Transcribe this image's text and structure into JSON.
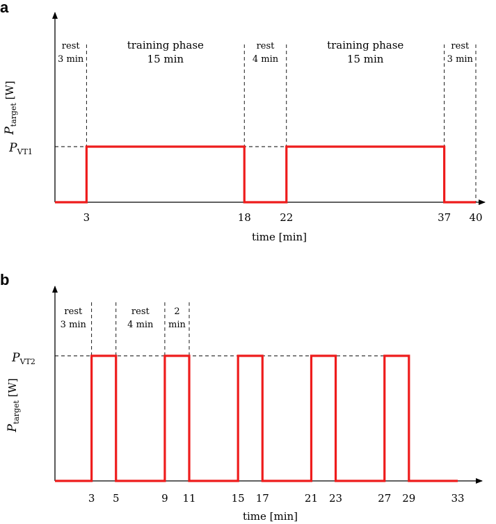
{
  "chart_data": [
    {
      "panel": "a",
      "type": "line",
      "xlabel": "time [min]",
      "ylabel": {
        "main": "P",
        "sub": "target",
        "unit": "[W]"
      },
      "level_label": {
        "main": "P",
        "sub": "VT1"
      },
      "xticks": [
        3,
        18,
        22,
        37,
        40
      ],
      "xlim": [
        0,
        40
      ],
      "ylim": [
        0,
        1
      ],
      "series": [
        {
          "x": [
            0,
            3,
            3,
            18,
            18,
            22,
            22,
            37,
            37,
            40
          ],
          "y": [
            0,
            0,
            1,
            1,
            0,
            0,
            1,
            1,
            0,
            0
          ],
          "color": "#ee1c1c"
        }
      ],
      "phase_boundaries": [
        3,
        18,
        22,
        37,
        40
      ],
      "phases": [
        {
          "lines": [
            "rest",
            "3 min"
          ],
          "x_start": 0,
          "x_end": 3,
          "size": "small"
        },
        {
          "lines": [
            "training phase",
            "15 min"
          ],
          "x_start": 3,
          "x_end": 18,
          "size": "big"
        },
        {
          "lines": [
            "rest",
            "4 min"
          ],
          "x_start": 18,
          "x_end": 22,
          "size": "small"
        },
        {
          "lines": [
            "training phase",
            "15 min"
          ],
          "x_start": 22,
          "x_end": 37,
          "size": "big"
        },
        {
          "lines": [
            "rest",
            "3 min"
          ],
          "x_start": 37,
          "x_end": 40,
          "size": "small"
        }
      ]
    },
    {
      "panel": "b",
      "type": "line",
      "xlabel": "time [min]",
      "ylabel": {
        "main": "P",
        "sub": "target",
        "unit": "[W]"
      },
      "level_label": {
        "main": "P",
        "sub": "VT2"
      },
      "xticks": [
        3,
        5,
        9,
        11,
        15,
        17,
        21,
        23,
        27,
        29,
        33
      ],
      "xlim": [
        0,
        33
      ],
      "ylim": [
        0,
        1
      ],
      "series": [
        {
          "x": [
            0,
            3,
            3,
            5,
            5,
            9,
            9,
            11,
            11,
            15,
            15,
            17,
            17,
            21,
            21,
            23,
            23,
            27,
            27,
            29,
            29,
            33
          ],
          "y": [
            0,
            0,
            1,
            1,
            0,
            0,
            1,
            1,
            0,
            0,
            1,
            1,
            0,
            0,
            1,
            1,
            0,
            0,
            1,
            1,
            0,
            0
          ],
          "color": "#ee1c1c"
        }
      ],
      "phase_boundaries": [
        3,
        5,
        9,
        11
      ],
      "phases": [
        {
          "lines": [
            "rest",
            "3 min"
          ],
          "x_start": 0,
          "x_end": 3,
          "size": "small"
        },
        {
          "lines": [
            "rest",
            "4 min"
          ],
          "x_start": 5,
          "x_end": 9,
          "size": "small"
        },
        {
          "lines": [
            "2",
            "min"
          ],
          "x_start": 9,
          "x_end": 11,
          "size": "small"
        }
      ]
    }
  ],
  "colors": {
    "signal": "#ee1c1c",
    "axis": "#000000"
  }
}
